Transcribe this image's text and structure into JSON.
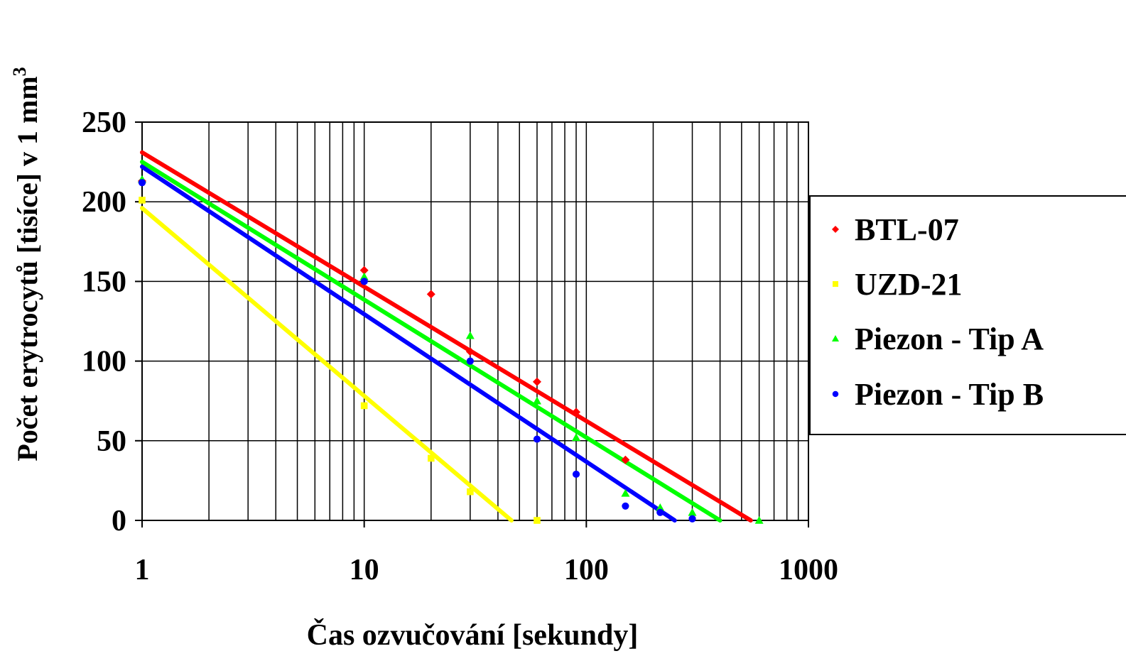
{
  "chart_data": {
    "type": "scatter",
    "xlabel": "Čas ozvučování [sekundy]",
    "ylabel": "Počet erytrocytů [tisíce]  v 1 mm",
    "ylabel_superscript": "3",
    "x_scale": "log",
    "xlim": [
      1,
      1000
    ],
    "ylim": [
      0,
      250
    ],
    "x_ticks": [
      "1",
      "10",
      "100",
      "1000"
    ],
    "y_ticks": [
      "0",
      "50",
      "100",
      "150",
      "200",
      "250"
    ],
    "grid": true,
    "legend_position": "right",
    "series": [
      {
        "name": "BTL-07",
        "color": "#ff0000",
        "marker": "diamond",
        "x": [
          1,
          10,
          20,
          30,
          60,
          90,
          150
        ],
        "y": [
          213,
          157,
          142,
          106,
          87,
          68,
          38
        ],
        "trend": {
          "x1": 1,
          "y1": 231,
          "x2": 550,
          "y2": 0
        }
      },
      {
        "name": "UZD-21",
        "color": "#ffff00",
        "marker": "square",
        "x": [
          1,
          10,
          20,
          30,
          60
        ],
        "y": [
          201,
          72,
          39,
          18,
          0
        ],
        "trend": {
          "x1": 1,
          "y1": 196,
          "x2": 46,
          "y2": 0
        }
      },
      {
        "name": "Piezon - Tip A",
        "color": "#00ff00",
        "marker": "triangle",
        "x": [
          1,
          10,
          30,
          60,
          90,
          150,
          215,
          300,
          600
        ],
        "y": [
          214,
          153,
          116,
          75,
          52,
          17,
          8,
          5,
          0
        ],
        "trend": {
          "x1": 1,
          "y1": 225,
          "x2": 400,
          "y2": 0
        }
      },
      {
        "name": "Piezon - Tip B",
        "color": "#0000ff",
        "marker": "circle",
        "x": [
          1,
          10,
          30,
          60,
          90,
          150,
          215,
          300
        ],
        "y": [
          212,
          150,
          100,
          51,
          29,
          9,
          5,
          1
        ],
        "trend": {
          "x1": 1,
          "y1": 222,
          "x2": 250,
          "y2": 0
        }
      }
    ]
  }
}
